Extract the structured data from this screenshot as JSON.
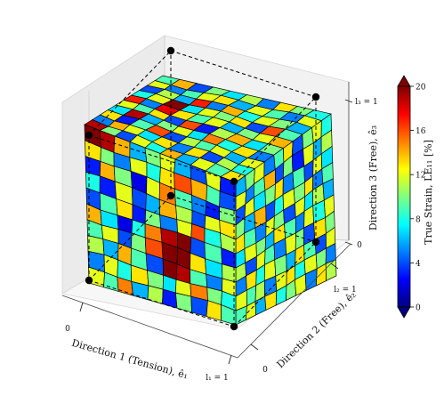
{
  "chart_data": {
    "type": "heatmap",
    "projection": "3d",
    "mesh": {
      "nx": 10,
      "ny": 10,
      "nz": 10
    },
    "axes": {
      "x": {
        "label": "Direction 1 (Tension), ê₁",
        "ticks": [
          "0",
          "l₁ = 1"
        ],
        "range": [
          0,
          1
        ]
      },
      "y": {
        "label": "Direction 2 (Free), ê₂",
        "ticks": [
          "0",
          "l₂ = 1"
        ],
        "range": [
          0,
          1
        ]
      },
      "z": {
        "label": "Direction 3 (Free), ê₃",
        "ticks": [
          "0",
          "l₃ = 1"
        ],
        "range": [
          0,
          1
        ]
      }
    },
    "colorbar": {
      "label": "True Strain, LE₁₁ [%]",
      "ticks": [
        0,
        4,
        8,
        12,
        16,
        20
      ],
      "tick_labels": [
        "0",
        "4",
        "8",
        "12",
        "16",
        "20"
      ],
      "range": [
        0,
        20
      ],
      "colormap": "jet",
      "extend": "both"
    },
    "reference_corners": [
      [
        0,
        0,
        0
      ],
      [
        1,
        0,
        0
      ],
      [
        0,
        1,
        0
      ],
      [
        1,
        1,
        0
      ],
      [
        0,
        0,
        1
      ],
      [
        1,
        0,
        1
      ],
      [
        0,
        1,
        1
      ],
      [
        1,
        1,
        1
      ]
    ],
    "front_face_strain": [
      [
        20,
        19,
        14,
        6,
        10,
        12,
        6,
        4,
        12,
        3
      ],
      [
        13,
        10,
        5,
        12,
        8,
        13,
        16,
        14,
        9,
        4
      ],
      [
        3,
        14,
        10,
        2,
        12,
        15,
        9,
        5,
        3,
        10
      ],
      [
        8,
        3,
        12,
        4,
        6,
        14,
        11,
        4,
        12,
        13
      ],
      [
        4,
        9,
        13,
        3,
        10,
        5,
        12,
        16,
        8,
        11
      ],
      [
        14,
        7,
        2,
        8,
        15,
        19,
        20,
        4,
        9,
        3
      ],
      [
        9,
        12,
        4,
        10,
        16,
        20,
        20,
        13,
        7,
        11
      ],
      [
        11,
        6,
        14,
        9,
        4,
        20,
        19,
        9,
        5,
        12
      ],
      [
        5,
        12,
        8,
        13,
        10,
        7,
        12,
        15,
        10,
        8
      ],
      [
        12,
        9,
        15,
        6,
        11,
        3,
        10,
        4,
        13,
        9
      ]
    ],
    "top_face_strain": [
      [
        19,
        5,
        13,
        7,
        12,
        17,
        8,
        4,
        12,
        9
      ],
      [
        10,
        14,
        3,
        19,
        9,
        5,
        12,
        11,
        5,
        14
      ],
      [
        4,
        12,
        9,
        6,
        13,
        18,
        20,
        6,
        9,
        4
      ],
      [
        12,
        7,
        16,
        10,
        4,
        13,
        7,
        17,
        12,
        10
      ],
      [
        8,
        13,
        4,
        12,
        16,
        9,
        12,
        5,
        13,
        7
      ],
      [
        14,
        5,
        11,
        7,
        3,
        12,
        10,
        14,
        6,
        11
      ],
      [
        6,
        13,
        9,
        15,
        11,
        6,
        13,
        8,
        12,
        5
      ],
      [
        12,
        4,
        12,
        8,
        14,
        10,
        4,
        12,
        9,
        13
      ],
      [
        9,
        11,
        6,
        13,
        7,
        12,
        16,
        10,
        5,
        10
      ],
      [
        13,
        8,
        12,
        5,
        10,
        14,
        9,
        6,
        12,
        8
      ]
    ],
    "side_face_strain": [
      [
        6,
        10,
        12,
        5,
        9,
        13,
        4,
        10,
        12,
        8
      ],
      [
        12,
        5,
        9,
        14,
        4,
        10,
        3,
        12,
        6,
        11
      ],
      [
        4,
        12,
        7,
        10,
        13,
        5,
        9,
        4,
        12,
        7
      ],
      [
        10,
        6,
        14,
        4,
        8,
        12,
        10,
        13,
        5,
        9
      ],
      [
        13,
        9,
        5,
        12,
        10,
        4,
        12,
        7,
        11,
        6
      ],
      [
        7,
        12,
        10,
        6,
        13,
        9,
        5,
        12,
        8,
        12
      ],
      [
        11,
        4,
        12,
        9,
        5,
        12,
        10,
        4,
        13,
        10
      ],
      [
        5,
        13,
        8,
        12,
        10,
        6,
        13,
        9,
        4,
        12
      ],
      [
        12,
        9,
        11,
        5,
        12,
        13,
        8,
        12,
        10,
        5
      ],
      [
        9,
        12,
        6,
        13,
        8,
        10,
        12,
        5,
        13,
        11
      ]
    ]
  }
}
